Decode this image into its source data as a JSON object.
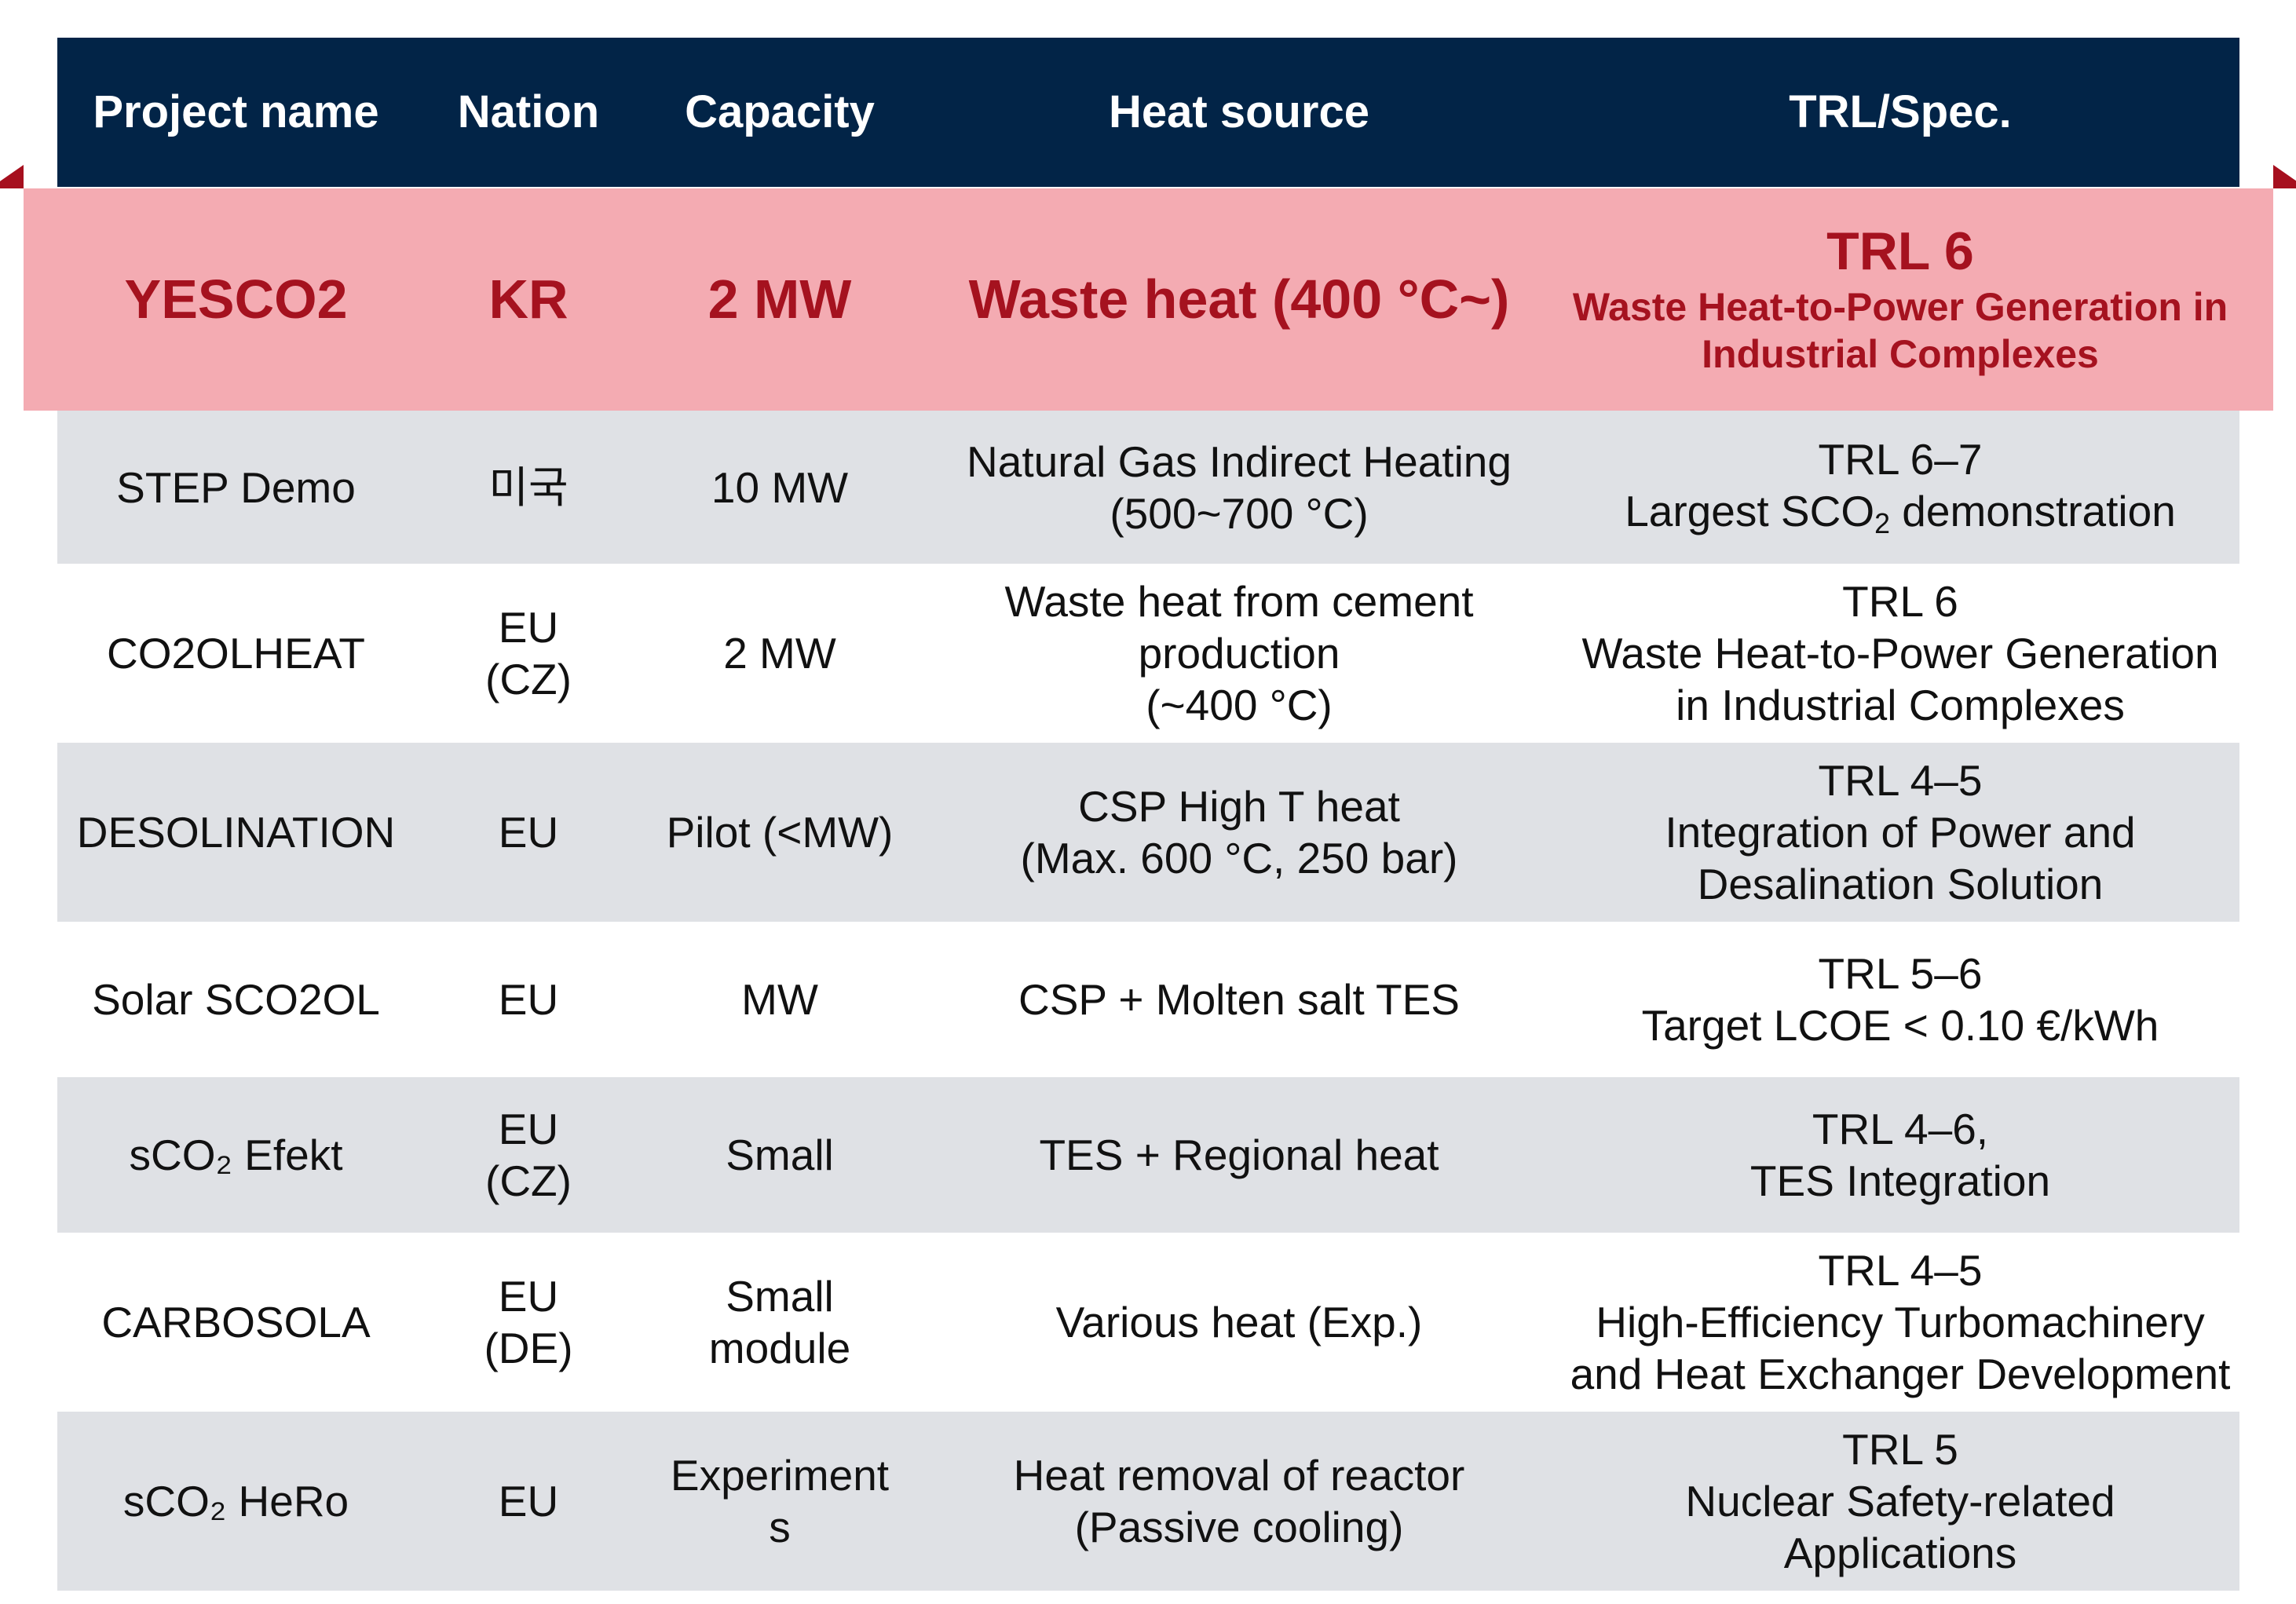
{
  "header": {
    "project_name": "Project name",
    "nation": "Nation",
    "capacity": "Capacity",
    "heat_source": "Heat source",
    "trl_spec": "TRL/Spec."
  },
  "highlight": {
    "project": "YESCO2",
    "nation": "KR",
    "capacity": "2 MW",
    "heat_source": "Waste heat (400 °C~)",
    "trl": "TRL 6",
    "spec_line1": "Waste Heat-to-Power Generation in",
    "spec_line2": "Industrial Complexes"
  },
  "rows": [
    {
      "project": [
        "STEP Demo"
      ],
      "nation": [
        "미국"
      ],
      "capacity": [
        "10 MW"
      ],
      "heat_source": [
        "Natural Gas Indirect Heating",
        "(500~700 °C)"
      ],
      "trl": [
        "TRL 6–7"
      ],
      "spec_prefix": "Largest SCO",
      "spec_sub": "2",
      "spec_suffix": " demonstration"
    },
    {
      "project": [
        "CO2OLHEAT"
      ],
      "nation": [
        "EU",
        "(CZ)"
      ],
      "capacity": [
        "2 MW"
      ],
      "heat_source": [
        "Waste heat from cement",
        "production",
        "(~400 °C)"
      ],
      "trl": [
        "TRL 6",
        "Waste Heat-to-Power Generation",
        "in Industrial Complexes"
      ]
    },
    {
      "project": [
        "DESOLINATION"
      ],
      "nation": [
        "EU"
      ],
      "capacity": [
        "Pilot (<MW)"
      ],
      "heat_source": [
        "CSP High T heat",
        "(Max. 600 °C, 250 bar)"
      ],
      "trl": [
        "TRL 4–5",
        "Integration of Power and",
        "Desalination Solution"
      ]
    },
    {
      "project": [
        "Solar SCO2OL"
      ],
      "nation": [
        "EU"
      ],
      "capacity": [
        "MW"
      ],
      "heat_source": [
        "CSP + Molten salt TES"
      ],
      "trl": [
        "TRL 5–6",
        "Target LCOE < 0.10 €/kWh"
      ]
    },
    {
      "project": [
        "sCO₂ Efekt"
      ],
      "nation": [
        "EU",
        "(CZ)"
      ],
      "capacity": [
        "Small"
      ],
      "heat_source": [
        "TES + Regional heat"
      ],
      "trl": [
        "TRL 4–6,",
        "TES Integration"
      ]
    },
    {
      "project": [
        "CARBOSOLA"
      ],
      "nation": [
        "EU",
        "(DE)"
      ],
      "capacity": [
        "Small",
        "module"
      ],
      "heat_source": [
        "Various heat (Exp.)"
      ],
      "trl": [
        "TRL 4–5",
        "High-Efficiency Turbomachinery",
        "and Heat Exchanger Development"
      ]
    },
    {
      "project": [
        "sCO₂ HeRo"
      ],
      "nation": [
        "EU"
      ],
      "capacity": [
        "Experiment",
        "s"
      ],
      "heat_source": [
        "Heat removal of reactor",
        "(Passive cooling)"
      ],
      "trl": [
        "TRL 5",
        "Nuclear Safety-related",
        "Applications"
      ]
    }
  ],
  "colors": {
    "header_bg": "#022447",
    "highlight_bg": "#f4abb2",
    "highlight_text": "#a5121f",
    "gray_row": "#dfe1e5"
  }
}
